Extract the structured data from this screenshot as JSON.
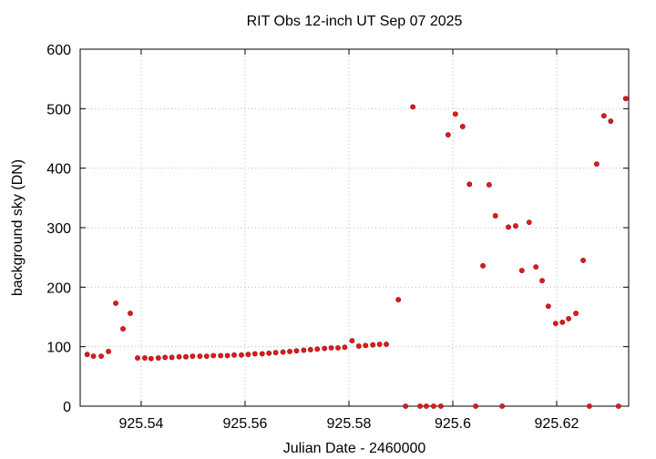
{
  "chart_data": {
    "type": "scatter",
    "title": "RIT Obs 12-inch UT Sep 07 2025",
    "x_label": "Julian Date - 2460000",
    "y_label": "background sky (DN)",
    "xlim": [
      925.52825,
      925.63386
    ],
    "ylim": [
      0,
      600
    ],
    "xticks": [
      925.54,
      925.56,
      925.58,
      925.6,
      925.62
    ],
    "yticks": [
      0,
      100,
      200,
      300,
      400,
      500,
      600
    ],
    "grid": true,
    "series": [
      {
        "color": "#e41a1c",
        "x": [
          925.5296,
          925.5308,
          925.5323,
          925.5337,
          925.5351,
          925.5365,
          925.5379,
          925.5393,
          925.5407,
          925.5419,
          925.5433,
          925.5446,
          925.5459,
          925.5473,
          925.5486,
          925.5499,
          925.5513,
          925.5526,
          925.5539,
          925.5553,
          925.5566,
          925.5579,
          925.5593,
          925.5606,
          925.5619,
          925.5633,
          925.5646,
          925.5659,
          925.5673,
          925.5686,
          925.5699,
          925.5713,
          925.5726,
          925.5739,
          925.5753,
          925.5766,
          925.5779,
          925.5792,
          925.5806,
          925.5819,
          925.5832,
          925.5846,
          925.5859,
          925.5872,
          925.5895,
          925.5909,
          925.5923,
          925.5937,
          925.5949,
          925.5963,
          925.5977,
          925.5991,
          925.6005,
          925.6019,
          925.6032,
          925.6044,
          925.6058,
          925.607,
          925.6082,
          925.6095,
          925.6107,
          925.6121,
          925.6133,
          925.6147,
          925.616,
          925.6172,
          925.6184,
          925.6198,
          925.6211,
          925.6223,
          925.6237,
          925.6251,
          925.6263,
          925.6277,
          925.6291,
          925.6304,
          925.6319,
          925.6333
        ],
        "values": [
          87,
          84,
          84,
          92,
          173,
          130,
          156,
          81,
          81,
          80,
          81,
          82,
          82,
          83,
          83,
          84,
          84,
          84,
          85,
          85,
          85,
          86,
          86,
          87,
          88,
          88,
          89,
          90,
          91,
          92,
          93,
          94,
          95,
          96,
          97,
          98,
          98,
          99,
          110,
          101,
          102,
          103,
          104,
          104,
          179,
          0,
          503,
          0,
          0,
          0,
          0,
          456,
          491,
          470,
          373,
          0,
          236,
          372,
          320,
          0,
          301,
          303,
          228,
          309,
          234,
          211,
          168,
          139,
          141,
          147,
          156,
          245,
          0,
          407,
          488,
          479,
          0,
          517
        ]
      }
    ]
  }
}
